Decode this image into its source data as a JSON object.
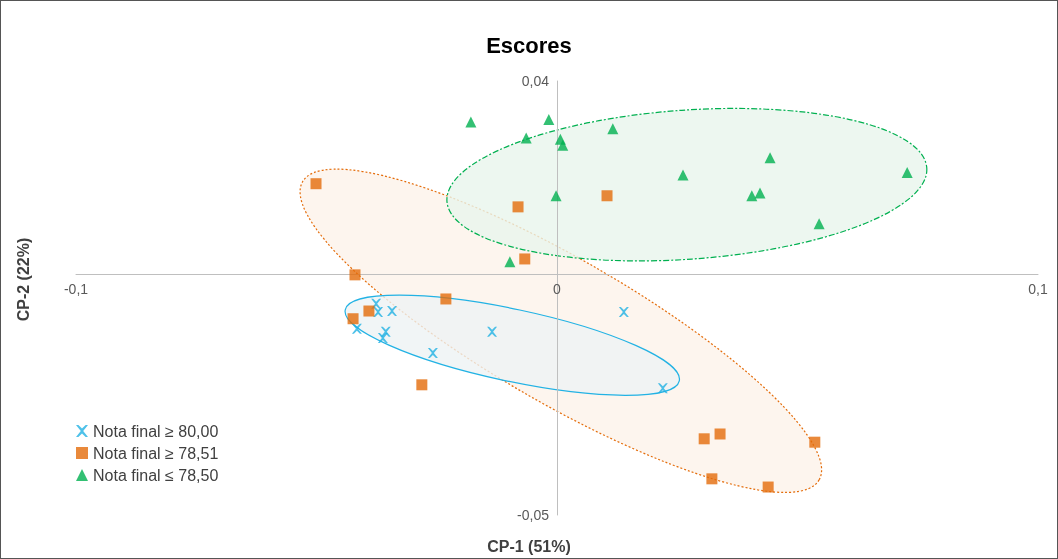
{
  "chart_data": {
    "type": "scatter",
    "title": "Escores",
    "xlabel": "CP-1 (51%)",
    "ylabel": "CP-2 (22%)",
    "xlim": [
      -0.1,
      0.1
    ],
    "ylim": [
      -0.05,
      0.04
    ],
    "xticks": [
      {
        "value": -0.1,
        "label": "-0,1"
      },
      {
        "value": 0,
        "label": "0"
      },
      {
        "value": 0.1,
        "label": "0,1"
      }
    ],
    "yticks": [
      {
        "value": -0.05,
        "label": "-0,05"
      },
      {
        "value": 0.04,
        "label": "0,04"
      }
    ],
    "grid": false,
    "legend": "bottom left",
    "series": [
      {
        "name": "Nota final ≥ 80,00",
        "color": "#22b2e4",
        "marker": "cross",
        "x": [
          -0.0376,
          -0.0372,
          -0.0343,
          -0.0416,
          -0.0356,
          -0.0362,
          -0.0258,
          -0.0135,
          0.0139,
          0.022
        ],
        "values": [
          -0.0062,
          -0.0079,
          -0.0077,
          -0.0114,
          -0.012,
          -0.0133,
          -0.0164,
          -0.012,
          -0.0079,
          -0.0237
        ]
      },
      {
        "name": "Nota final ≥ 78,51",
        "color": "#e46c0a",
        "marker": "square",
        "x": [
          -0.0501,
          -0.042,
          -0.0424,
          -0.0391,
          -0.0231,
          -0.0281,
          -0.0081,
          -0.0067,
          0.0104,
          0.0306,
          0.0339,
          0.0536,
          0.0322,
          0.0439
        ],
        "values": [
          0.0187,
          -0.0002,
          -0.0093,
          -0.0077,
          -0.0052,
          -0.023,
          0.0139,
          0.0031,
          0.0162,
          -0.0342,
          -0.0332,
          -0.0349,
          -0.0425,
          -0.0442
        ]
      },
      {
        "name": "Nota final ≤ 78,50",
        "color": "#00b050",
        "marker": "triangle",
        "x": [
          -0.0179,
          -0.0017,
          -0.0064,
          0.0007,
          0.0012,
          0.0116,
          -0.0002,
          0.0262,
          0.0443,
          0.0405,
          0.0422,
          0.0545,
          0.0728,
          -0.0098
        ],
        "values": [
          0.0315,
          0.032,
          0.0282,
          0.0279,
          0.0267,
          0.0301,
          0.0162,
          0.0205,
          0.0241,
          0.0162,
          0.0168,
          0.0104,
          0.021,
          0.0025
        ]
      }
    ]
  }
}
